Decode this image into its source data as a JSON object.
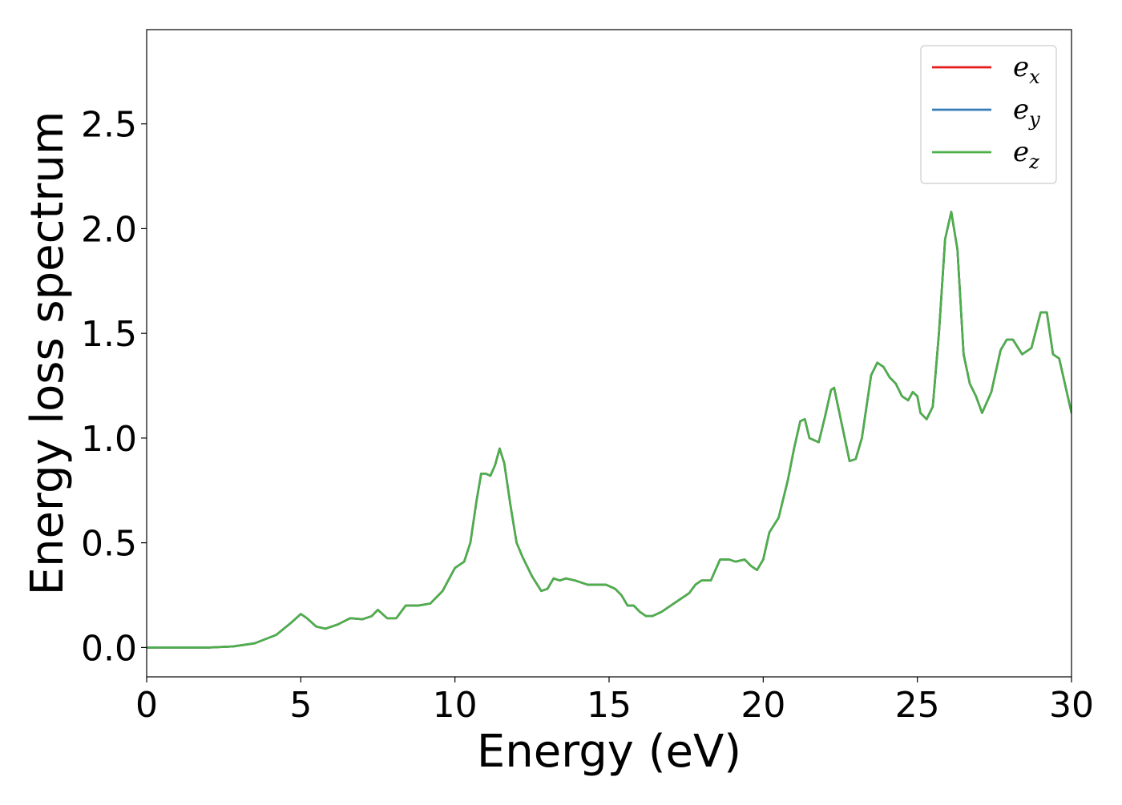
{
  "chart_data": {
    "type": "line",
    "title": "",
    "xlabel": "Energy (eV)",
    "ylabel": "Energy loss spectrum",
    "xlim": [
      0,
      30
    ],
    "ylim": [
      -0.14,
      2.95
    ],
    "x_ticks": [
      0,
      5,
      10,
      15,
      20,
      25,
      30
    ],
    "x_tick_labels": [
      "0",
      "5",
      "10",
      "15",
      "20",
      "25",
      "30"
    ],
    "y_ticks": [
      0.0,
      0.5,
      1.0,
      1.5,
      2.0,
      2.5
    ],
    "y_tick_labels": [
      "0.0",
      "0.5",
      "1.0",
      "1.5",
      "2.0",
      "2.5"
    ],
    "grid": false,
    "legend_position": "top-right",
    "series": [
      {
        "name": "e_x",
        "legend_base": "e",
        "legend_sub": "x",
        "color": "#e41a1c",
        "x": [
          0,
          1,
          2,
          2.8,
          3.5,
          4.2,
          4.7,
          5.0,
          5.2,
          5.5,
          5.8,
          6.2,
          6.6,
          7.0,
          7.3,
          7.5,
          7.8,
          8.1,
          8.4,
          8.8,
          9.2,
          9.6,
          10.0,
          10.3,
          10.5,
          10.7,
          10.85,
          11.0,
          11.15,
          11.3,
          11.45,
          11.6,
          11.8,
          12.0,
          12.2,
          12.5,
          12.8,
          13.0,
          13.2,
          13.4,
          13.6,
          13.9,
          14.1,
          14.3,
          14.6,
          14.9,
          15.2,
          15.4,
          15.6,
          15.8,
          16.0,
          16.2,
          16.4,
          16.7,
          17.0,
          17.3,
          17.6,
          17.8,
          18.0,
          18.3,
          18.6,
          18.9,
          19.1,
          19.4,
          19.6,
          19.8,
          20.0,
          20.2,
          20.5,
          20.8,
          21.0,
          21.2,
          21.35,
          21.5,
          21.8,
          22.0,
          22.2,
          22.3,
          22.5,
          22.8,
          23.0,
          23.2,
          23.5,
          23.7,
          23.9,
          24.1,
          24.3,
          24.5,
          24.7,
          24.85,
          25.0,
          25.1,
          25.3,
          25.5,
          25.7,
          25.9,
          26.1,
          26.3,
          26.5,
          26.7,
          26.9,
          27.1,
          27.4,
          27.7,
          27.9,
          28.1,
          28.4,
          28.7,
          29.0,
          29.2,
          29.4,
          29.6,
          29.8,
          30.0
        ],
        "y": [
          0.0,
          0.0,
          0.0,
          0.005,
          0.02,
          0.06,
          0.12,
          0.16,
          0.14,
          0.1,
          0.09,
          0.11,
          0.14,
          0.135,
          0.15,
          0.18,
          0.14,
          0.14,
          0.2,
          0.2,
          0.21,
          0.27,
          0.38,
          0.41,
          0.5,
          0.7,
          0.83,
          0.83,
          0.82,
          0.87,
          0.95,
          0.88,
          0.68,
          0.5,
          0.43,
          0.34,
          0.27,
          0.28,
          0.33,
          0.32,
          0.33,
          0.32,
          0.31,
          0.3,
          0.3,
          0.3,
          0.28,
          0.25,
          0.2,
          0.2,
          0.17,
          0.15,
          0.15,
          0.17,
          0.2,
          0.23,
          0.26,
          0.3,
          0.32,
          0.32,
          0.42,
          0.42,
          0.41,
          0.42,
          0.39,
          0.37,
          0.42,
          0.55,
          0.62,
          0.8,
          0.95,
          1.08,
          1.09,
          1.0,
          0.98,
          1.1,
          1.23,
          1.24,
          1.1,
          0.89,
          0.9,
          1.0,
          1.3,
          1.36,
          1.34,
          1.29,
          1.26,
          1.2,
          1.18,
          1.22,
          1.2,
          1.12,
          1.09,
          1.15,
          1.5,
          1.95,
          2.08,
          1.9,
          1.4,
          1.26,
          1.2,
          1.12,
          1.22,
          1.42,
          1.47,
          1.47,
          1.4,
          1.43,
          1.6,
          1.6,
          1.4,
          1.38,
          1.25,
          1.12
        ]
      },
      {
        "name": "e_y",
        "legend_base": "e",
        "legend_sub": "y",
        "color": "#377eb8",
        "x": [
          0,
          1,
          2,
          2.8,
          3.5,
          4.2,
          4.7,
          5.0,
          5.2,
          5.5,
          5.8,
          6.2,
          6.6,
          7.0,
          7.3,
          7.5,
          7.8,
          8.1,
          8.4,
          8.8,
          9.2,
          9.6,
          10.0,
          10.3,
          10.5,
          10.7,
          10.85,
          11.0,
          11.15,
          11.3,
          11.45,
          11.6,
          11.8,
          12.0,
          12.2,
          12.5,
          12.8,
          13.0,
          13.2,
          13.4,
          13.6,
          13.9,
          14.1,
          14.3,
          14.6,
          14.9,
          15.2,
          15.4,
          15.6,
          15.8,
          16.0,
          16.2,
          16.4,
          16.7,
          17.0,
          17.3,
          17.6,
          17.8,
          18.0,
          18.3,
          18.6,
          18.9,
          19.1,
          19.4,
          19.6,
          19.8,
          20.0,
          20.2,
          20.5,
          20.8,
          21.0,
          21.2,
          21.35,
          21.5,
          21.8,
          22.0,
          22.2,
          22.3,
          22.5,
          22.8,
          23.0,
          23.2,
          23.5,
          23.7,
          23.9,
          24.1,
          24.3,
          24.5,
          24.7,
          24.85,
          25.0,
          25.1,
          25.3,
          25.5,
          25.7,
          25.9,
          26.1,
          26.3,
          26.5,
          26.7,
          26.9,
          27.1,
          27.4,
          27.7,
          27.9,
          28.1,
          28.4,
          28.7,
          29.0,
          29.2,
          29.4,
          29.6,
          29.8,
          30.0
        ],
        "y": [
          0.0,
          0.0,
          0.0,
          0.005,
          0.02,
          0.06,
          0.12,
          0.16,
          0.14,
          0.1,
          0.09,
          0.11,
          0.14,
          0.135,
          0.15,
          0.18,
          0.14,
          0.14,
          0.2,
          0.2,
          0.21,
          0.27,
          0.38,
          0.41,
          0.5,
          0.7,
          0.83,
          0.83,
          0.82,
          0.87,
          0.95,
          0.88,
          0.68,
          0.5,
          0.43,
          0.34,
          0.27,
          0.28,
          0.33,
          0.32,
          0.33,
          0.32,
          0.31,
          0.3,
          0.3,
          0.3,
          0.28,
          0.25,
          0.2,
          0.2,
          0.17,
          0.15,
          0.15,
          0.17,
          0.2,
          0.23,
          0.26,
          0.3,
          0.32,
          0.32,
          0.42,
          0.42,
          0.41,
          0.42,
          0.39,
          0.37,
          0.42,
          0.55,
          0.62,
          0.8,
          0.95,
          1.08,
          1.09,
          1.0,
          0.98,
          1.1,
          1.23,
          1.24,
          1.1,
          0.89,
          0.9,
          1.0,
          1.3,
          1.36,
          1.34,
          1.29,
          1.26,
          1.2,
          1.18,
          1.22,
          1.2,
          1.12,
          1.09,
          1.15,
          1.5,
          1.95,
          2.08,
          1.9,
          1.4,
          1.26,
          1.2,
          1.12,
          1.22,
          1.42,
          1.47,
          1.47,
          1.4,
          1.43,
          1.6,
          1.6,
          1.4,
          1.38,
          1.25,
          1.12
        ]
      },
      {
        "name": "e_z",
        "legend_base": "e",
        "legend_sub": "z",
        "color": "#4daf4a",
        "x": [
          0,
          1,
          2,
          2.8,
          3.5,
          4.2,
          4.7,
          5.0,
          5.2,
          5.5,
          5.8,
          6.2,
          6.6,
          7.0,
          7.3,
          7.5,
          7.8,
          8.1,
          8.4,
          8.8,
          9.2,
          9.6,
          10.0,
          10.3,
          10.5,
          10.7,
          10.85,
          11.0,
          11.15,
          11.3,
          11.45,
          11.6,
          11.8,
          12.0,
          12.2,
          12.5,
          12.8,
          13.0,
          13.2,
          13.4,
          13.6,
          13.9,
          14.1,
          14.3,
          14.6,
          14.9,
          15.2,
          15.4,
          15.6,
          15.8,
          16.0,
          16.2,
          16.4,
          16.7,
          17.0,
          17.3,
          17.6,
          17.8,
          18.0,
          18.3,
          18.6,
          18.9,
          19.1,
          19.4,
          19.6,
          19.8,
          20.0,
          20.2,
          20.5,
          20.8,
          21.0,
          21.2,
          21.35,
          21.5,
          21.8,
          22.0,
          22.2,
          22.3,
          22.5,
          22.8,
          23.0,
          23.2,
          23.5,
          23.7,
          23.9,
          24.1,
          24.3,
          24.5,
          24.7,
          24.85,
          25.0,
          25.1,
          25.3,
          25.5,
          25.7,
          25.9,
          26.1,
          26.3,
          26.5,
          26.7,
          26.9,
          27.1,
          27.4,
          27.7,
          27.9,
          28.1,
          28.4,
          28.7,
          29.0,
          29.2,
          29.4,
          29.6,
          29.8,
          30.0
        ],
        "y": [
          0.0,
          0.0,
          0.0,
          0.005,
          0.02,
          0.06,
          0.12,
          0.16,
          0.14,
          0.1,
          0.09,
          0.11,
          0.14,
          0.135,
          0.15,
          0.18,
          0.14,
          0.14,
          0.2,
          0.2,
          0.21,
          0.27,
          0.38,
          0.41,
          0.5,
          0.7,
          0.83,
          0.83,
          0.82,
          0.87,
          0.95,
          0.88,
          0.68,
          0.5,
          0.43,
          0.34,
          0.27,
          0.28,
          0.33,
          0.32,
          0.33,
          0.32,
          0.31,
          0.3,
          0.3,
          0.3,
          0.28,
          0.25,
          0.2,
          0.2,
          0.17,
          0.15,
          0.15,
          0.17,
          0.2,
          0.23,
          0.26,
          0.3,
          0.32,
          0.32,
          0.42,
          0.42,
          0.41,
          0.42,
          0.39,
          0.37,
          0.42,
          0.55,
          0.62,
          0.8,
          0.95,
          1.08,
          1.09,
          1.0,
          0.98,
          1.1,
          1.23,
          1.24,
          1.1,
          0.89,
          0.9,
          1.0,
          1.3,
          1.36,
          1.34,
          1.29,
          1.26,
          1.2,
          1.18,
          1.22,
          1.2,
          1.12,
          1.09,
          1.15,
          1.5,
          1.95,
          2.08,
          1.9,
          1.4,
          1.26,
          1.2,
          1.12,
          1.22,
          1.42,
          1.47,
          1.47,
          1.4,
          1.43,
          1.6,
          1.6,
          1.4,
          1.38,
          1.25,
          1.12
        ]
      }
    ]
  }
}
